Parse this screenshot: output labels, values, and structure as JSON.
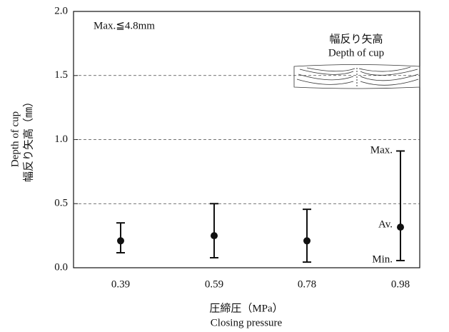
{
  "chart_data": {
    "type": "errorbar",
    "categories": [
      "0.39",
      "0.59",
      "0.78",
      "0.98"
    ],
    "values": [
      0.21,
      0.25,
      0.21,
      0.317
    ],
    "min": [
      0.117,
      0.078,
      0.044,
      0.056
    ],
    "max": [
      0.35,
      0.5,
      0.456,
      0.911
    ],
    "color": "#111111",
    "ylim": [
      0,
      2.0
    ],
    "yticks": [
      {
        "value": 0,
        "label": "0.0"
      },
      0.5,
      {
        "value": 1,
        "label": "1.0"
      },
      1.5,
      {
        "value": 2,
        "label": "2.0"
      }
    ],
    "grid": true,
    "xlabel": [
      "圧締圧（MPa）",
      "Closing pressure"
    ],
    "ylabel": [
      "Depth of cup",
      "幅反り矢高（㎜）"
    ],
    "annotations": [
      "Max.≦4.8mm",
      "幅反り矢高",
      "Depth of cup",
      "Max.",
      "Av.",
      "Min."
    ]
  }
}
